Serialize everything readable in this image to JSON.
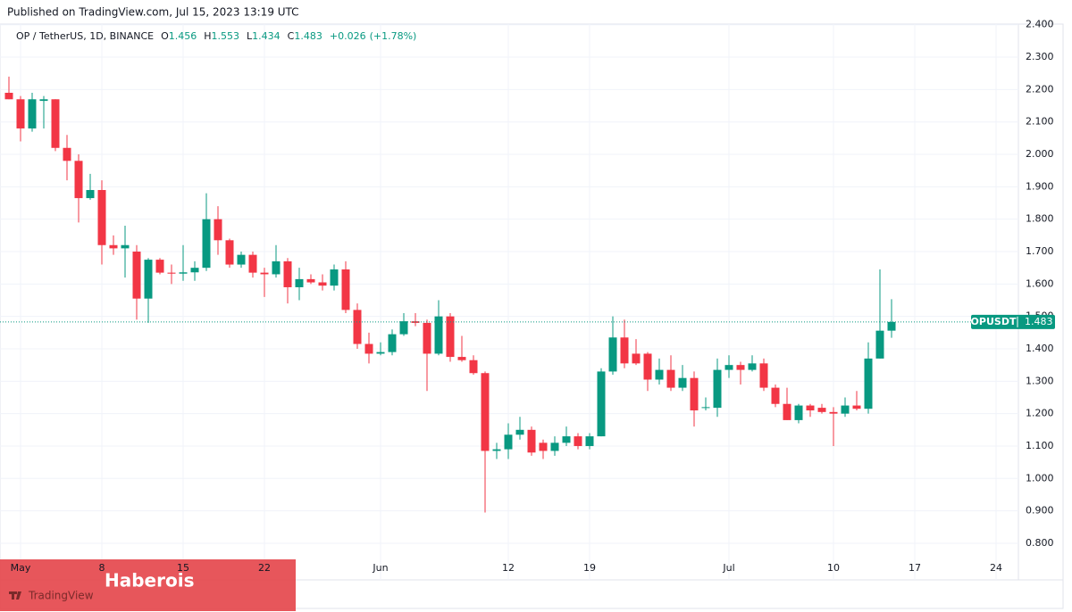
{
  "published": "Published on TradingView.com, Jul 15, 2023 13:19 UTC",
  "watermark": "Haberois",
  "logo": "TradingView",
  "chart_data": {
    "type": "candlestick",
    "title": "OP / TetherUS, 1D, BINANCE",
    "header_labels": [
      "O",
      "H",
      "L",
      "C"
    ],
    "change": {
      "value": 0.026,
      "label": "+0.026"
    },
    "change_pct": {
      "value": 1.78,
      "label": "(+1.78%)"
    },
    "symbol_label": "OPUSDT",
    "up_color": "#089981",
    "down_color": "#f23645",
    "grid": true,
    "categories": [
      null,
      "May",
      null,
      null,
      null,
      null,
      null,
      null,
      "8",
      null,
      null,
      null,
      null,
      null,
      null,
      "15",
      null,
      null,
      null,
      null,
      null,
      null,
      "22",
      null,
      null,
      null,
      null,
      null,
      null,
      null,
      null,
      null,
      "Jun",
      null,
      null,
      null,
      null,
      null,
      null,
      null,
      null,
      null,
      null,
      "12",
      null,
      null,
      null,
      null,
      null,
      null,
      "19",
      null,
      null,
      null,
      null,
      null,
      null,
      null,
      null,
      null,
      null,
      null,
      "Jul",
      null,
      null,
      null,
      null,
      null,
      null,
      null,
      null,
      "10",
      null,
      null,
      null,
      null,
      null,
      null,
      "17",
      null,
      null,
      null,
      null,
      null,
      null,
      "24",
      null,
      null
    ],
    "open": [
      2.19,
      2.17,
      2.08,
      2.165,
      2.17,
      2.02,
      1.98,
      1.865,
      1.89,
      1.72,
      1.71,
      1.7,
      1.555,
      1.675,
      1.635,
      1.632,
      1.636,
      1.65,
      1.8,
      1.735,
      1.66,
      1.69,
      1.635,
      1.63,
      1.67,
      1.59,
      1.615,
      1.605,
      1.595,
      1.645,
      1.52,
      1.415,
      1.385,
      1.39,
      1.445,
      1.485,
      1.48,
      1.385,
      1.5,
      1.375,
      1.365,
      1.325,
      1.085,
      1.09,
      1.135,
      1.15,
      1.11,
      1.085,
      1.11,
      1.13,
      1.1,
      1.13,
      1.33,
      1.435,
      1.385,
      1.385,
      1.305,
      1.335,
      1.28,
      1.31,
      1.218,
      1.218,
      1.335,
      1.35,
      1.335,
      1.355,
      1.28,
      1.23,
      1.18,
      1.225,
      1.218,
      1.205,
      1.2,
      1.225,
      1.215,
      1.37,
      1.456,
      null,
      null,
      null,
      null,
      null,
      null,
      null,
      null,
      null,
      null,
      null
    ],
    "high": [
      2.24,
      2.18,
      2.19,
      2.18,
      2.17,
      2.06,
      2.0,
      1.94,
      1.92,
      1.75,
      1.78,
      1.72,
      1.68,
      1.68,
      1.66,
      1.72,
      1.67,
      1.88,
      1.84,
      1.74,
      1.7,
      1.7,
      1.65,
      1.72,
      1.68,
      1.65,
      1.63,
      1.63,
      1.66,
      1.67,
      1.54,
      1.45,
      1.42,
      1.46,
      1.51,
      1.51,
      1.49,
      1.55,
      1.51,
      1.44,
      1.38,
      1.33,
      1.11,
      1.17,
      1.19,
      1.16,
      1.12,
      1.13,
      1.16,
      1.14,
      1.14,
      1.34,
      1.5,
      1.49,
      1.43,
      1.39,
      1.37,
      1.38,
      1.35,
      1.33,
      1.25,
      1.37,
      1.38,
      1.36,
      1.38,
      1.37,
      1.29,
      1.28,
      1.23,
      1.23,
      1.23,
      1.22,
      1.25,
      1.27,
      1.42,
      1.645,
      1.553,
      null,
      null,
      null,
      null,
      null,
      null,
      null,
      null,
      null,
      null,
      null
    ],
    "low": [
      2.17,
      2.04,
      2.07,
      2.08,
      2.01,
      1.92,
      1.79,
      1.86,
      1.66,
      1.69,
      1.62,
      1.49,
      1.48,
      1.63,
      1.6,
      1.61,
      1.61,
      1.64,
      1.69,
      1.65,
      1.65,
      1.62,
      1.56,
      1.62,
      1.54,
      1.55,
      1.6,
      1.58,
      1.58,
      1.51,
      1.4,
      1.355,
      1.38,
      1.38,
      1.44,
      1.47,
      1.27,
      1.38,
      1.36,
      1.36,
      1.32,
      0.895,
      1.06,
      1.06,
      1.12,
      1.07,
      1.06,
      1.07,
      1.1,
      1.09,
      1.09,
      1.13,
      1.32,
      1.34,
      1.35,
      1.27,
      1.29,
      1.27,
      1.27,
      1.16,
      1.21,
      1.19,
      1.31,
      1.29,
      1.33,
      1.27,
      1.22,
      1.18,
      1.17,
      1.19,
      1.2,
      1.1,
      1.19,
      1.21,
      1.2,
      1.37,
      1.434,
      null,
      null,
      null,
      null,
      null,
      null,
      null,
      null,
      null,
      null,
      null
    ],
    "close": [
      2.17,
      2.08,
      2.17,
      2.17,
      2.02,
      1.98,
      1.865,
      1.89,
      1.72,
      1.71,
      1.72,
      1.555,
      1.675,
      1.635,
      1.632,
      1.636,
      1.65,
      1.8,
      1.735,
      1.66,
      1.69,
      1.635,
      1.63,
      1.67,
      1.59,
      1.615,
      1.605,
      1.595,
      1.645,
      1.52,
      1.415,
      1.385,
      1.39,
      1.445,
      1.485,
      1.48,
      1.385,
      1.5,
      1.375,
      1.365,
      1.325,
      1.085,
      1.09,
      1.135,
      1.15,
      1.08,
      1.085,
      1.11,
      1.13,
      1.1,
      1.13,
      1.33,
      1.435,
      1.355,
      1.355,
      1.305,
      1.335,
      1.28,
      1.31,
      1.21,
      1.22,
      1.335,
      1.35,
      1.335,
      1.355,
      1.28,
      1.23,
      1.18,
      1.225,
      1.21,
      1.205,
      1.2,
      1.225,
      1.215,
      1.37,
      1.456,
      1.483,
      null,
      null,
      null,
      null,
      null,
      null,
      null,
      null,
      null,
      null,
      null
    ],
    "ylim": [
      0.687,
      2.402
    ],
    "yticks": [
      {
        "value": 0.8,
        "label": "0.800"
      },
      {
        "value": 0.9,
        "label": "0.900"
      },
      {
        "value": 1.0,
        "label": "1.000"
      },
      {
        "value": 1.1,
        "label": "1.100"
      },
      {
        "value": 1.2,
        "label": "1.200"
      },
      {
        "value": 1.3,
        "label": "1.300"
      },
      {
        "value": 1.4,
        "label": "1.400"
      },
      {
        "value": 1.5,
        "label": "1.500"
      },
      {
        "value": 1.6,
        "label": "1.600"
      },
      {
        "value": 1.7,
        "label": "1.700"
      },
      {
        "value": 1.8,
        "label": "1.800"
      },
      {
        "value": 1.9,
        "label": "1.900"
      },
      {
        "value": 2.0,
        "label": "2.000"
      },
      {
        "value": 2.1,
        "label": "2.100"
      },
      {
        "value": 2.2,
        "label": "2.200"
      },
      {
        "value": 2.3,
        "label": "2.300"
      },
      {
        "value": 2.4,
        "label": "2.400"
      }
    ]
  }
}
